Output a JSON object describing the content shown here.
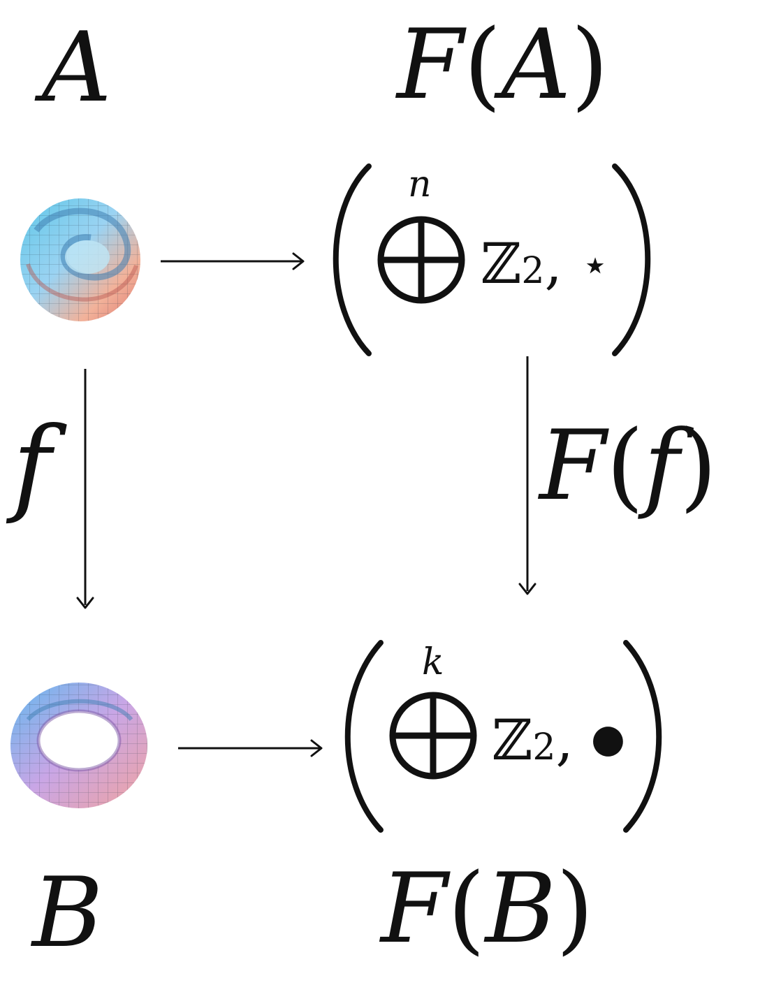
{
  "labels": {
    "top_left": "A",
    "top_right_func": "F",
    "top_right_arg": "A",
    "bottom_left": "B",
    "bottom_right_func": "F",
    "bottom_right_arg": "B",
    "left_arrow": "f",
    "right_arrow_func": "F",
    "right_arrow_arg": "f"
  },
  "top_group": {
    "operator": "⊕",
    "superscript": "n",
    "ring": "ℤ",
    "subscript": "2",
    "separator": ",",
    "operation": "⋆"
  },
  "bottom_group": {
    "operator": "⊕",
    "superscript": "k",
    "ring": "ℤ",
    "subscript": "2",
    "separator": ",",
    "operation": "●"
  },
  "icons": {
    "top_left_image": "klein-bottle-surface",
    "bottom_left_image": "torus-surface"
  }
}
